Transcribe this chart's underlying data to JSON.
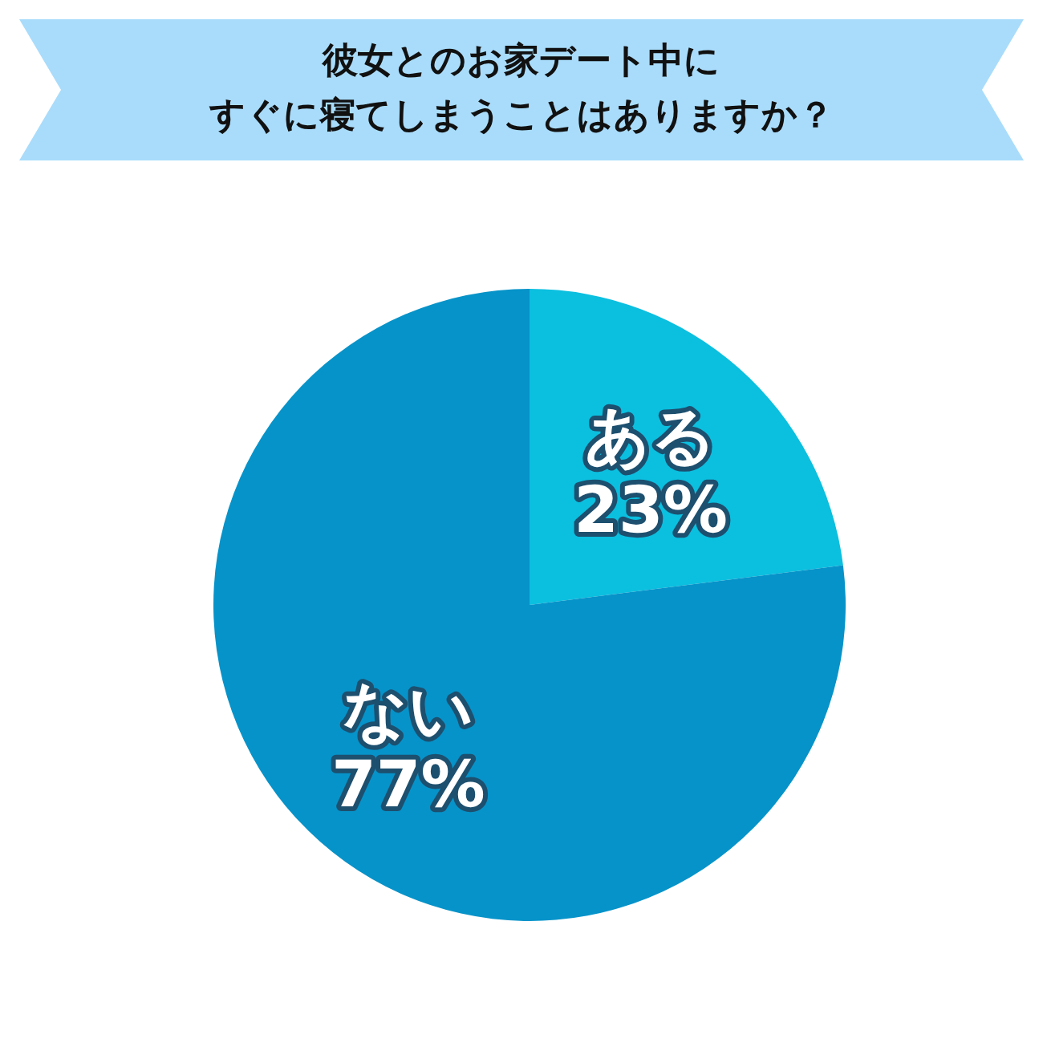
{
  "chart_data": {
    "type": "pie",
    "title": "彼女とのお家デート中にすぐに寝てしまうことはありますか？",
    "categories": [
      "ある",
      "ない"
    ],
    "values": [
      23,
      77
    ],
    "value_labels": [
      "23%",
      "77%"
    ],
    "colors": [
      "#0bbfdf",
      "#0693c9"
    ],
    "legend": false
  }
}
